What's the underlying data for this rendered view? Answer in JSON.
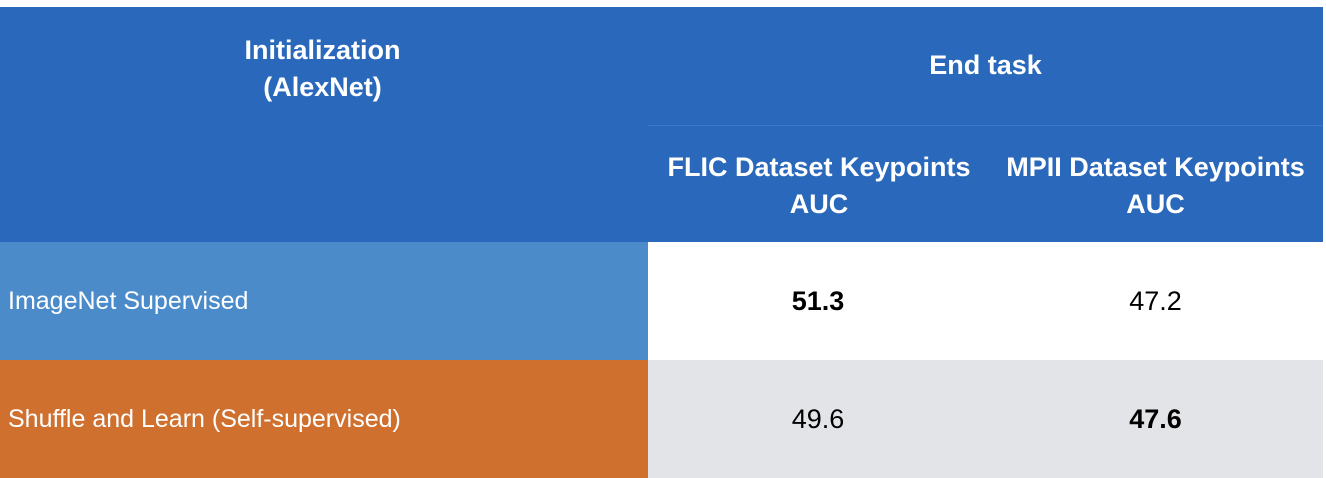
{
  "table": {
    "header": {
      "init_line1": "Initialization",
      "init_line2": "(AlexNet)",
      "end_task": "End task",
      "columns": [
        {
          "line1": "FLIC Dataset Keypoints",
          "line2": "AUC"
        },
        {
          "line1": "MPII Dataset Keypoints",
          "line2": "AUC"
        }
      ]
    },
    "rows": [
      {
        "label": "ImageNet Supervised",
        "values": [
          "51.3",
          "47.2"
        ],
        "bold": [
          true,
          false
        ]
      },
      {
        "label": "Shuffle and Learn (Self-supervised)",
        "values": [
          "49.6",
          "47.6"
        ],
        "bold": [
          false,
          true
        ]
      }
    ]
  },
  "colors": {
    "header_bg": "#2a68bb",
    "row1_label_bg": "#4b8bc9",
    "row2_label_bg": "#d0702e",
    "row1_values_bg": "#ffffff",
    "row2_values_bg": "#e3e4e8"
  }
}
